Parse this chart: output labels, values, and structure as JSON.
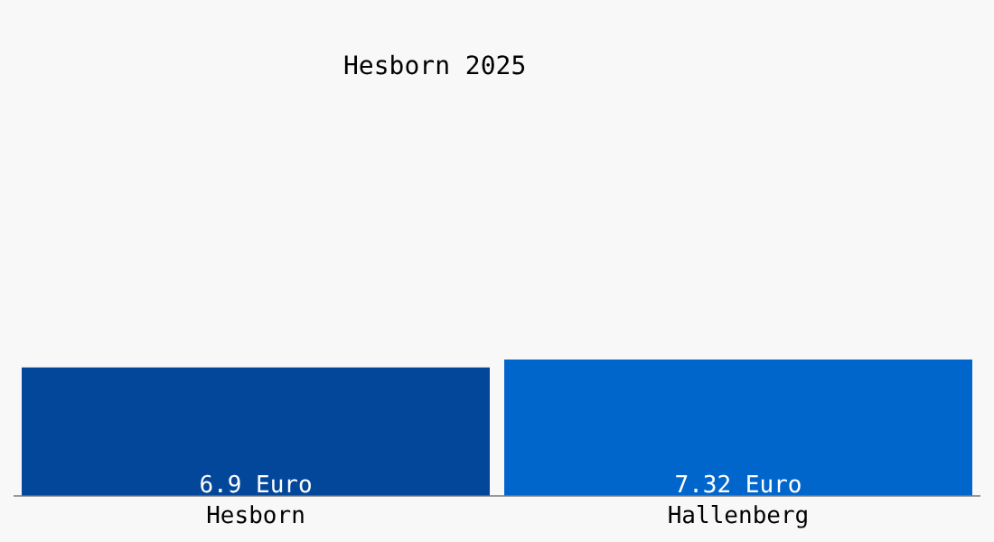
{
  "chart_data": {
    "type": "bar",
    "title": "Hesborn 2025",
    "categories": [
      "Hesborn",
      "Hallenberg"
    ],
    "values": [
      6.9,
      7.32
    ],
    "colors": [
      "#03479b",
      "#0066cc"
    ],
    "value_labels": [
      "6.9 Euro",
      "7.32 Euro"
    ],
    "grid": false,
    "legend": false
  }
}
